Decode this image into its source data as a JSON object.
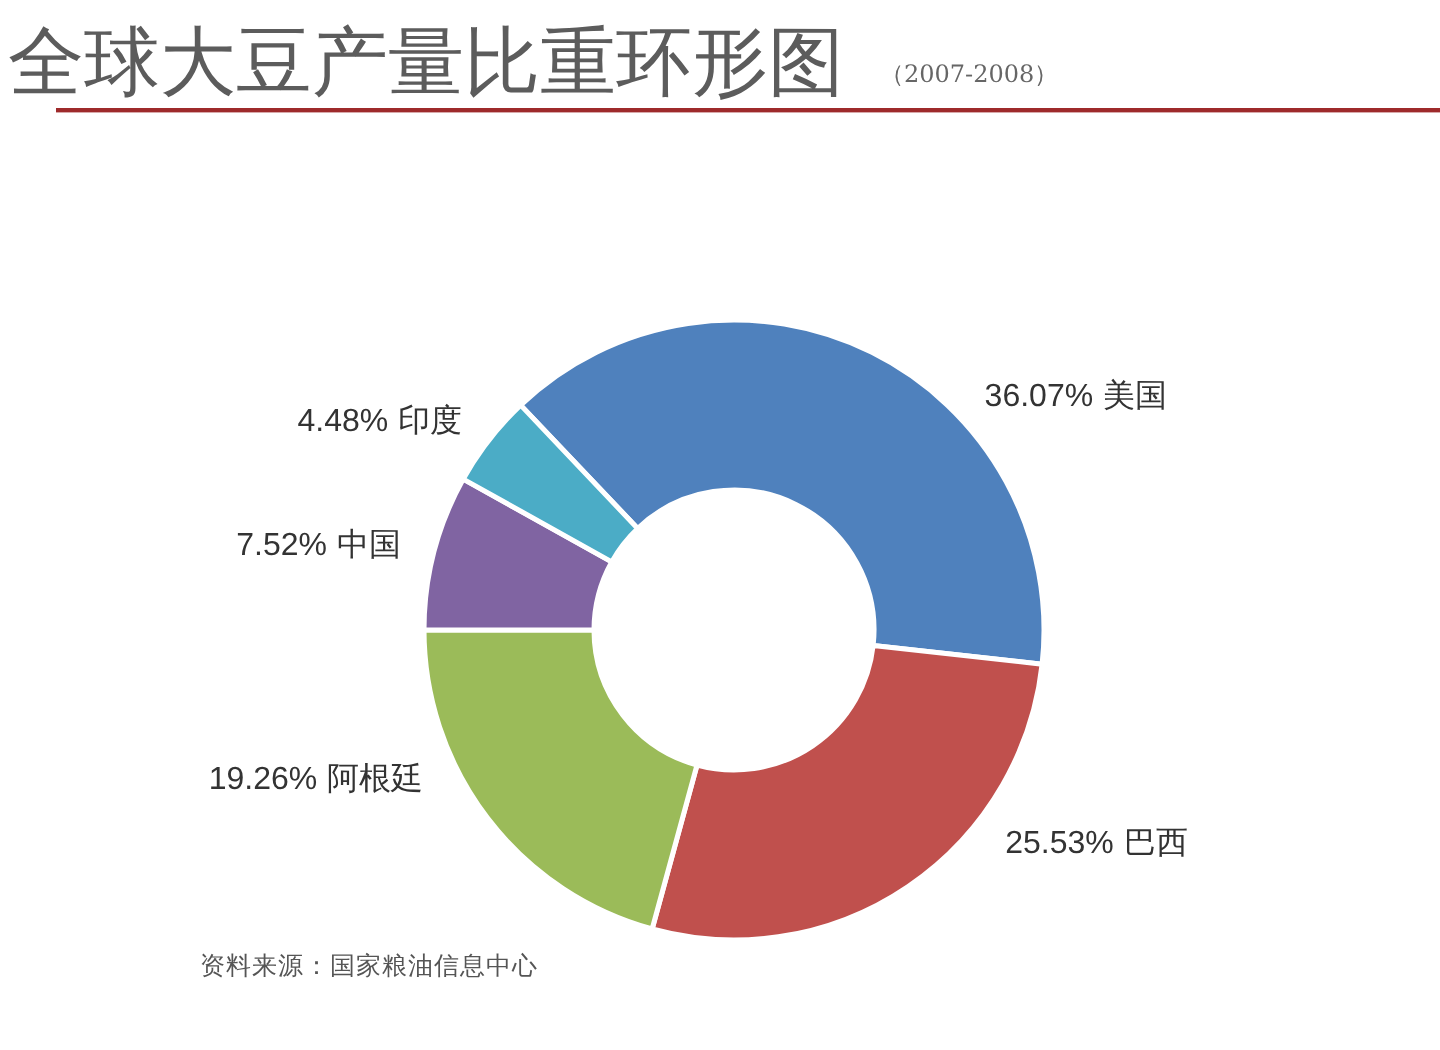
{
  "chart_data": {
    "type": "donut",
    "title": "全球大豆产量比重环形图",
    "subtitle": "（2007-2008）",
    "categories": [
      "美国",
      "巴西",
      "阿根廷",
      "中国",
      "印度"
    ],
    "values": [
      36.07,
      25.53,
      19.26,
      7.52,
      4.48
    ],
    "colors": [
      "#4f81bd",
      "#c0504d",
      "#9bbb59",
      "#8064a2",
      "#4bacc6"
    ],
    "value_labels": [
      "36.07%",
      "25.53%",
      "19.26%",
      "7.52%",
      "4.48%"
    ],
    "annotations": [
      "资料来源：国家粮油信息中心"
    ]
  }
}
